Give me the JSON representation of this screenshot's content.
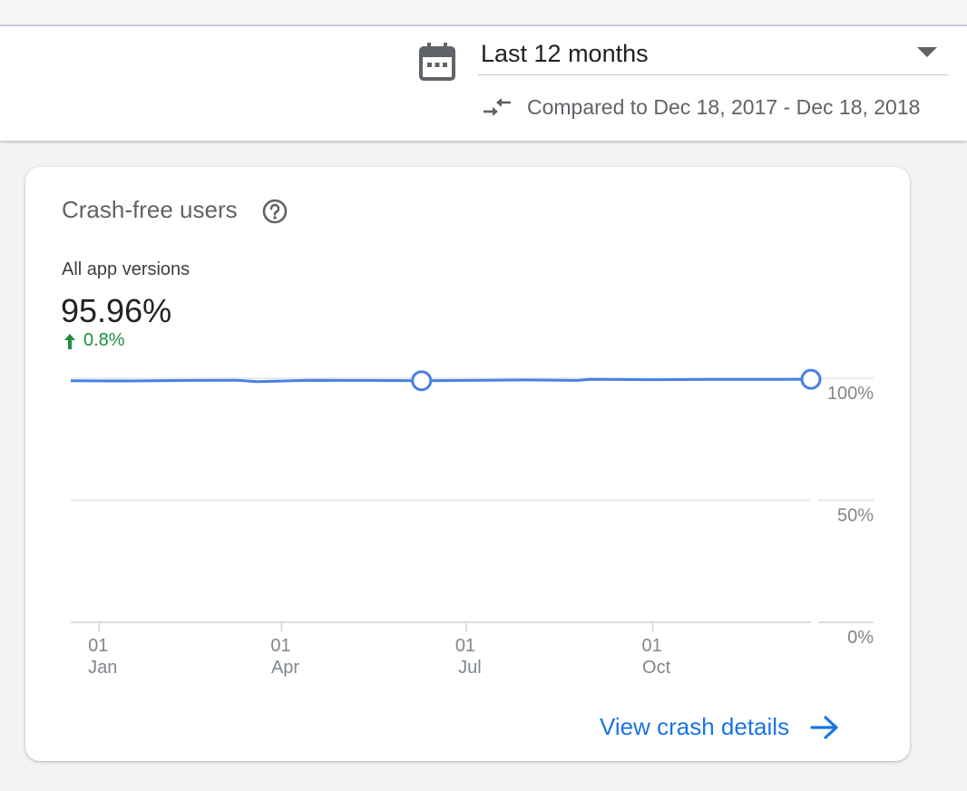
{
  "header": {
    "date_range": "Last 12 months",
    "compare_text": "Compared to Dec 18, 2017 - Dec 18, 2018",
    "icons": [
      "calendar-icon",
      "compare-arrows-icon",
      "dropdown-caret-icon"
    ]
  },
  "card": {
    "title": "Crash-free users",
    "subtitle": "All app versions",
    "value": "95.96%",
    "delta": "0.8%",
    "link_label": "View crash details",
    "icons": [
      "help-icon",
      "arrow-up-icon",
      "arrow-forward-icon"
    ]
  },
  "colors": {
    "line": "#4a7fe0",
    "positive": "#1e8e3e",
    "link": "#1a73e8"
  },
  "chart_data": {
    "type": "line",
    "x_tick_labels": [
      {
        "day": "01",
        "month": "Jan"
      },
      {
        "day": "01",
        "month": "Apr"
      },
      {
        "day": "01",
        "month": "Jul"
      },
      {
        "day": "01",
        "month": "Oct"
      }
    ],
    "y_tick_labels": [
      "100%",
      "50%",
      "0%"
    ],
    "ylim": [
      0,
      100
    ],
    "grid": true,
    "series": [
      {
        "x": [
          "2017-12-18",
          "2018-01-15",
          "2018-02-15",
          "2018-03-10",
          "2018-03-20",
          "2018-04-15",
          "2018-05-15",
          "2018-06-09",
          "2018-06-30",
          "2018-07-31",
          "2018-08-25",
          "2018-08-31",
          "2018-09-30",
          "2018-10-31",
          "2018-11-30",
          "2018-12-18"
        ],
        "y": [
          99.0,
          98.9,
          99.1,
          99.2,
          98.6,
          99.2,
          99.1,
          99.0,
          99.1,
          99.3,
          99.1,
          99.6,
          99.4,
          99.5,
          99.5,
          99.6
        ],
        "markers": [
          "2018-06-09",
          "2018-12-18"
        ]
      }
    ]
  }
}
